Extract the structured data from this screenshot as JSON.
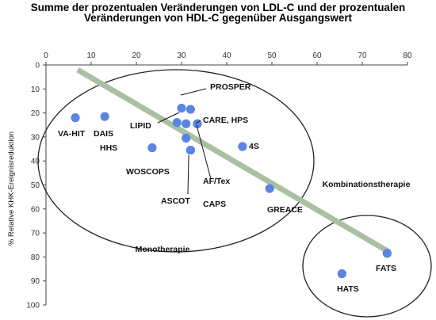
{
  "chart_data": {
    "type": "scatter",
    "title": [
      "Summe der prozentualen Veränderungen von LDL-C und der prozentualen",
      "Veränderungen von HDL-C gegenüber Ausgangswert"
    ],
    "xlabel": "",
    "ylabel": "% Relative KHK-Ereignisreduktion",
    "xlim": [
      0,
      80
    ],
    "ylim": [
      0,
      100
    ],
    "y_inverted": true,
    "x_ticks": [
      "0",
      "10",
      "20",
      "30",
      "40",
      "50",
      "60",
      "70",
      "80"
    ],
    "y_ticks": [
      "0",
      "10",
      "20",
      "30",
      "40",
      "50",
      "60",
      "70",
      "80",
      "90",
      "100"
    ],
    "point_color": "#5b85e3",
    "trend_color": "#a9c0a3",
    "trend_line": [
      [
        7,
        2
      ],
      [
        76,
        78
      ]
    ],
    "points": [
      {
        "label": "VA-HIT",
        "x": 6.5,
        "y": 22
      },
      {
        "label": "DAIS",
        "x": 13,
        "y": 21.5
      },
      {
        "label": "HHS",
        "x": 23.5,
        "y": 34.5
      },
      {
        "label": "PROSPER",
        "x": 30,
        "y": 18
      },
      {
        "label": "",
        "x": 32,
        "y": 18.5
      },
      {
        "label": "LIPID",
        "x": 29,
        "y": 24
      },
      {
        "label": "",
        "x": 31,
        "y": 24.5
      },
      {
        "label": "CARE, HPS",
        "x": 33.5,
        "y": 24.5
      },
      {
        "label": "WOSCOPS",
        "x": 31,
        "y": 30.5
      },
      {
        "label": "ASCOT",
        "x": 32,
        "y": 35.5
      },
      {
        "label": "AF/Tex",
        "x": 33.5,
        "y": 24.5
      },
      {
        "label": "CAPS",
        "x": 32,
        "y": 35.5
      },
      {
        "label": "4S",
        "x": 43.5,
        "y": 34
      },
      {
        "label": "GREACE",
        "x": 49.5,
        "y": 51.5
      },
      {
        "label": "HATS",
        "x": 65.5,
        "y": 87
      },
      {
        "label": "FATS",
        "x": 75.5,
        "y": 78.5
      }
    ],
    "groups": [
      {
        "name": "Monotherapie"
      },
      {
        "name": "Kombinationstherapie"
      }
    ]
  }
}
